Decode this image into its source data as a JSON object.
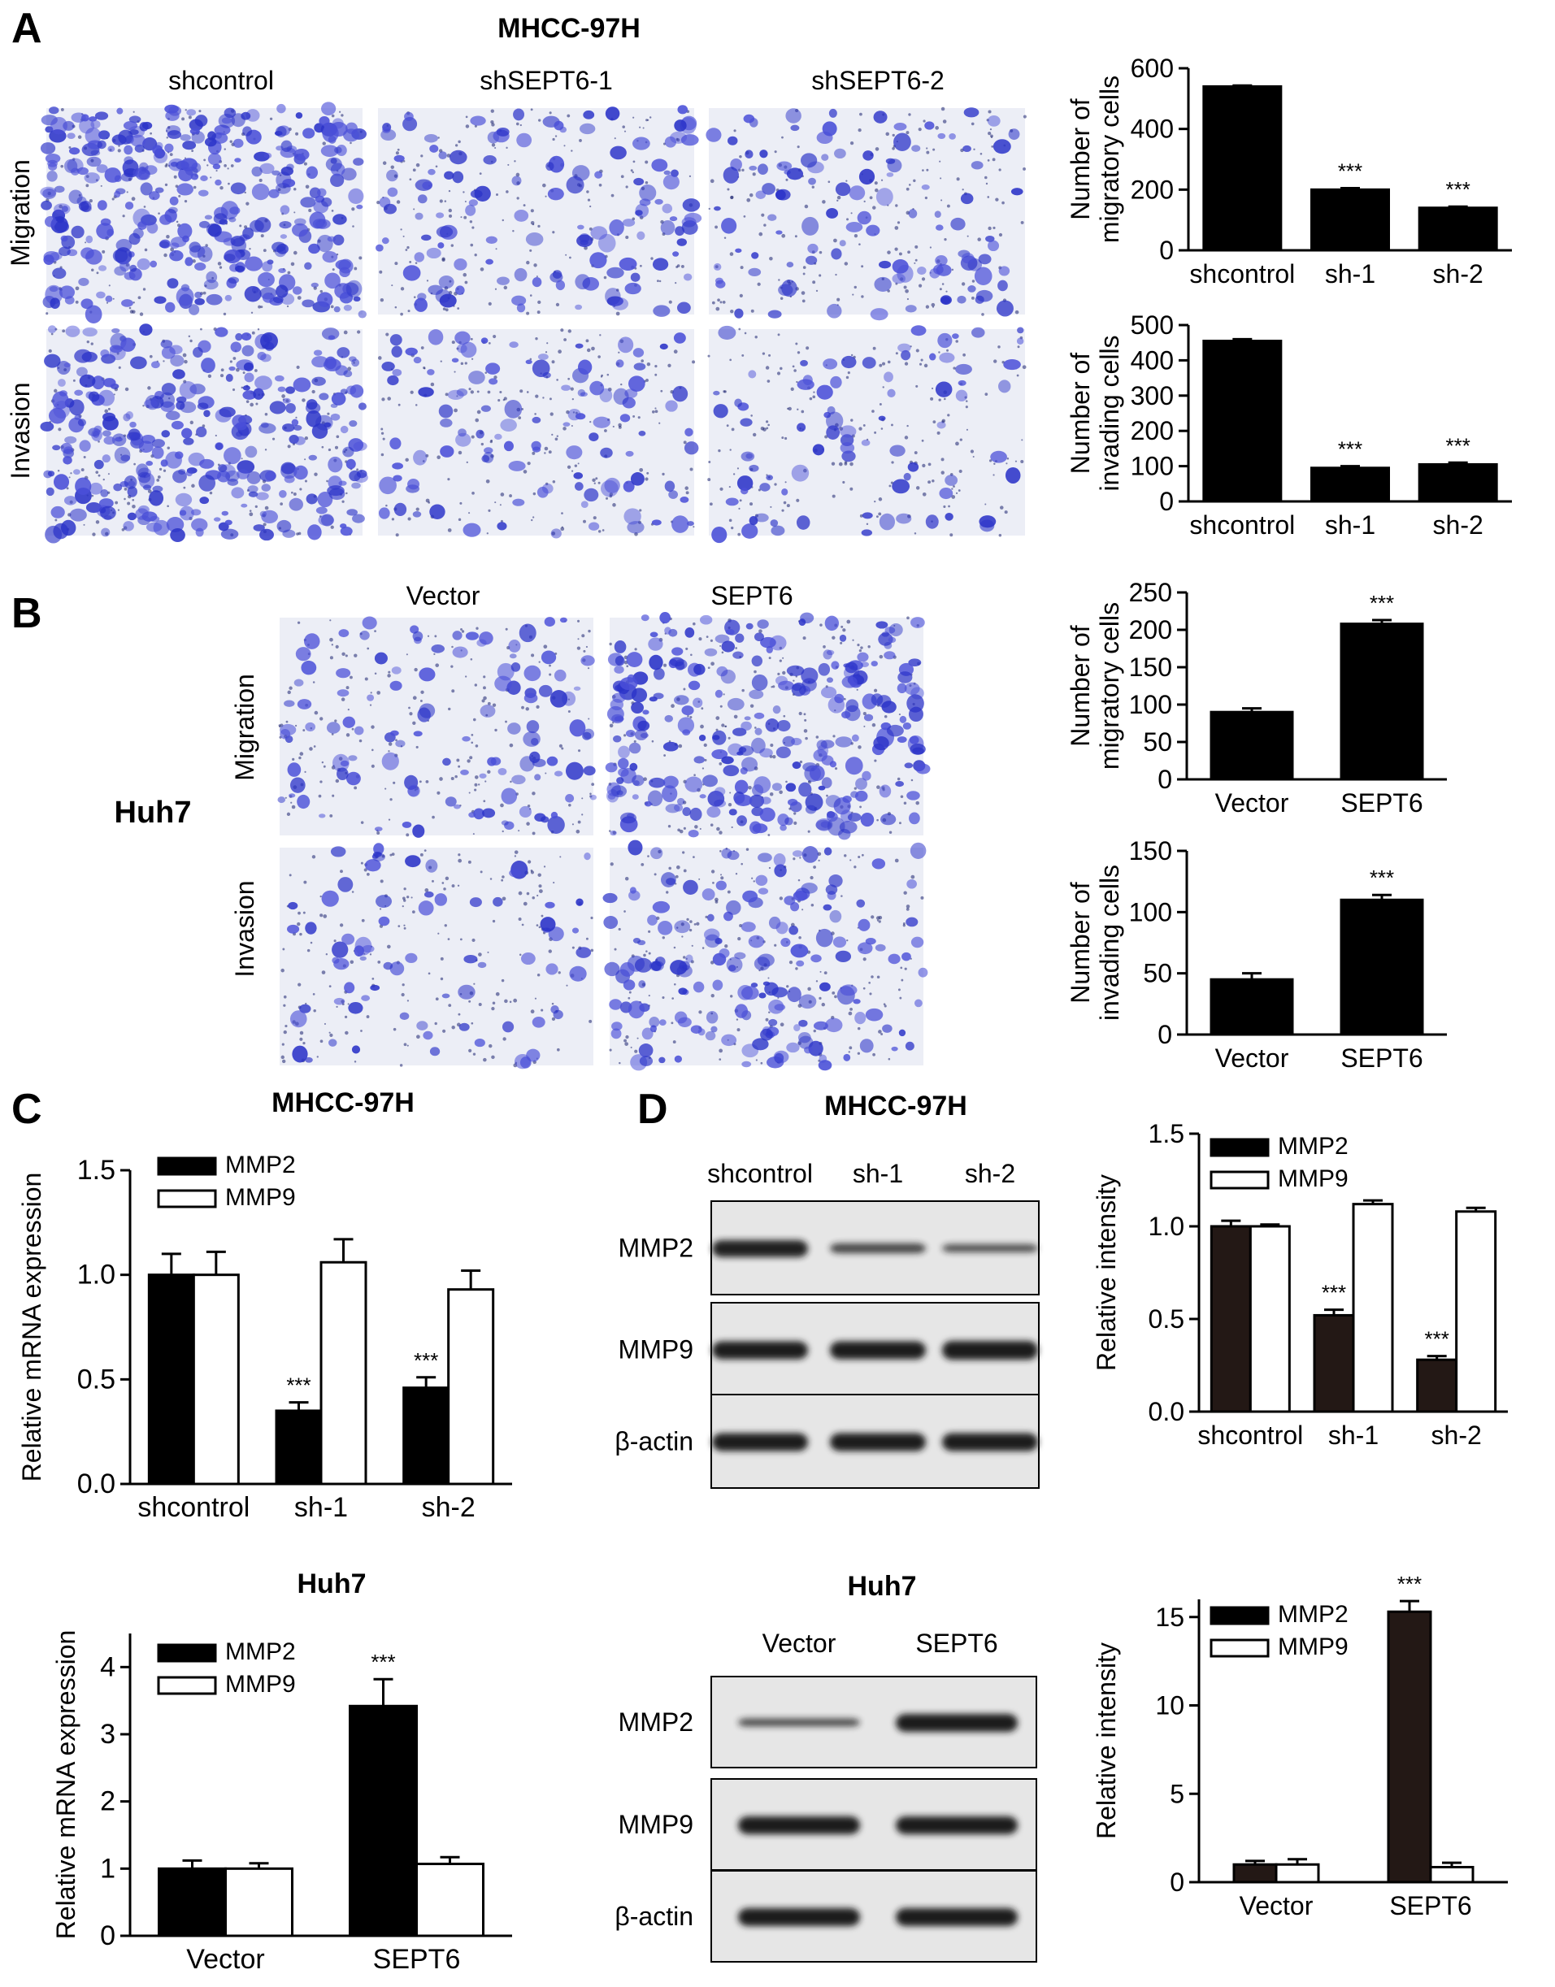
{
  "panels": {
    "A": {
      "letter": "A",
      "cell_line": "MHCC-97H",
      "columns": [
        "shcontrol",
        "shSEPT6-1",
        "shSEPT6-2"
      ],
      "rows": [
        "Migration",
        "Invasion"
      ]
    },
    "B": {
      "letter": "B",
      "cell_line": "Huh7",
      "columns": [
        "Vector",
        "SEPT6"
      ],
      "rows": [
        "Migration",
        "Invasion"
      ]
    },
    "C": {
      "letter": "C"
    },
    "D": {
      "letter": "D",
      "blot_top": {
        "title": "MHCC-97H",
        "lanes": [
          "shcontrol",
          "sh-1",
          "sh-2"
        ],
        "bands": [
          {
            "name": "MMP2",
            "intensity": [
              0.95,
              0.55,
              0.45
            ]
          },
          {
            "name": "MMP9",
            "intensity": [
              1.0,
              1.0,
              1.05
            ]
          },
          {
            "name": "β-actin",
            "intensity": [
              1.0,
              1.0,
              1.0
            ]
          }
        ]
      },
      "blot_bottom": {
        "title": "Huh7",
        "lanes": [
          "Vector",
          "SEPT6"
        ],
        "bands": [
          {
            "name": "MMP2",
            "intensity": [
              0.45,
              1.0
            ]
          },
          {
            "name": "MMP9",
            "intensity": [
              1.0,
              1.0
            ]
          },
          {
            "name": "β-actin",
            "intensity": [
              1.0,
              1.0
            ]
          }
        ]
      }
    }
  },
  "colors": {
    "bar_black": "#000000",
    "bar_dark_brown": "#231815",
    "stain_purple": "#3b3fcf"
  },
  "chart_data": [
    {
      "id": "a_migration",
      "type": "bar",
      "title": "",
      "ylabel": "Number of\nmigratory cells",
      "categories": [
        "shcontrol",
        "sh-1",
        "sh-2"
      ],
      "series": [
        {
          "values": [
            540,
            200,
            140
          ],
          "errors": [
            3,
            5,
            4
          ]
        }
      ],
      "ylim": [
        0,
        600
      ],
      "yticks": [
        "0",
        "200",
        "400",
        "600"
      ],
      "annotations": [
        "",
        "***",
        "***"
      ]
    },
    {
      "id": "a_invasion",
      "type": "bar",
      "title": "",
      "ylabel": "Number of\ninvading cells",
      "categories": [
        "shcontrol",
        "sh-1",
        "sh-2"
      ],
      "series": [
        {
          "values": [
            455,
            95,
            105
          ],
          "errors": [
            5,
            5,
            5
          ]
        }
      ],
      "ylim": [
        0,
        500
      ],
      "yticks": [
        "0",
        "100",
        "200",
        "300",
        "400",
        "500"
      ],
      "annotations": [
        "",
        "***",
        "***"
      ]
    },
    {
      "id": "b_migration",
      "type": "bar",
      "title": "",
      "ylabel": "Number of\nmigratory cells",
      "categories": [
        "Vector",
        "SEPT6"
      ],
      "series": [
        {
          "values": [
            90,
            208
          ],
          "errors": [
            5,
            5
          ]
        }
      ],
      "ylim": [
        0,
        250
      ],
      "yticks": [
        "0",
        "50",
        "100",
        "150",
        "200",
        "250"
      ],
      "annotations": [
        "",
        "***"
      ]
    },
    {
      "id": "b_invasion",
      "type": "bar",
      "title": "",
      "ylabel": "Number of\ninvading cells",
      "categories": [
        "Vector",
        "SEPT6"
      ],
      "series": [
        {
          "values": [
            45,
            110
          ],
          "errors": [
            5,
            4
          ]
        }
      ],
      "ylim": [
        0,
        150
      ],
      "yticks": [
        "0",
        "50",
        "100",
        "150"
      ],
      "annotations": [
        "",
        "***"
      ]
    },
    {
      "id": "c_mhcc",
      "type": "bar",
      "title": "MHCC-97H",
      "ylabel": "Relative mRNA expression",
      "categories": [
        "shcontrol",
        "sh-1",
        "sh-2"
      ],
      "legend": "top-left",
      "series": [
        {
          "name": "MMP2",
          "values": [
            1.0,
            0.35,
            0.46
          ],
          "errors": [
            0.1,
            0.04,
            0.05
          ]
        },
        {
          "name": "MMP9",
          "values": [
            1.0,
            1.06,
            0.93
          ],
          "errors": [
            0.11,
            0.11,
            0.09
          ]
        }
      ],
      "ylim": [
        0,
        1.5
      ],
      "yticks": [
        "0.0",
        "0.5",
        "1.0",
        "1.5"
      ],
      "annotations": [
        "",
        "***",
        "***"
      ]
    },
    {
      "id": "c_huh7",
      "type": "bar",
      "title": "Huh7",
      "ylabel": "Relative mRNA expression",
      "categories": [
        "Vector",
        "SEPT6"
      ],
      "legend": "top-left",
      "series": [
        {
          "name": "MMP2",
          "values": [
            1.0,
            3.42
          ],
          "errors": [
            0.12,
            0.4
          ]
        },
        {
          "name": "MMP9",
          "values": [
            1.0,
            1.07
          ],
          "errors": [
            0.08,
            0.1
          ]
        }
      ],
      "ylim": [
        0,
        4.5
      ],
      "yticks": [
        "0",
        "1",
        "2",
        "3",
        "4"
      ],
      "annotations": [
        "",
        "***"
      ]
    },
    {
      "id": "d_mhcc",
      "type": "bar",
      "title": "",
      "ylabel": "Relative intensity",
      "categories": [
        "shcontrol",
        "sh-1",
        "sh-2"
      ],
      "legend": "top-left",
      "series": [
        {
          "name": "MMP2",
          "values": [
            1.0,
            0.52,
            0.28
          ],
          "errors": [
            0.03,
            0.03,
            0.02
          ]
        },
        {
          "name": "MMP9",
          "values": [
            1.0,
            1.12,
            1.08
          ],
          "errors": [
            0.01,
            0.02,
            0.02
          ]
        }
      ],
      "ylim": [
        0,
        1.5
      ],
      "yticks": [
        "0.0",
        "0.5",
        "1.0",
        "1.5"
      ],
      "annotations": [
        "",
        "***",
        "***"
      ]
    },
    {
      "id": "d_huh7",
      "type": "bar",
      "title": "",
      "ylabel": "Relative intensity",
      "categories": [
        "Vector",
        "SEPT6"
      ],
      "legend": "top-left",
      "series": [
        {
          "name": "MMP2",
          "values": [
            1.0,
            15.3
          ],
          "errors": [
            0.2,
            0.6
          ]
        },
        {
          "name": "MMP9",
          "values": [
            1.0,
            0.85
          ],
          "errors": [
            0.3,
            0.25
          ]
        }
      ],
      "ylim": [
        0,
        16
      ],
      "yticks": [
        "0",
        "5",
        "10",
        "15"
      ],
      "annotations": [
        "",
        "***"
      ]
    }
  ]
}
